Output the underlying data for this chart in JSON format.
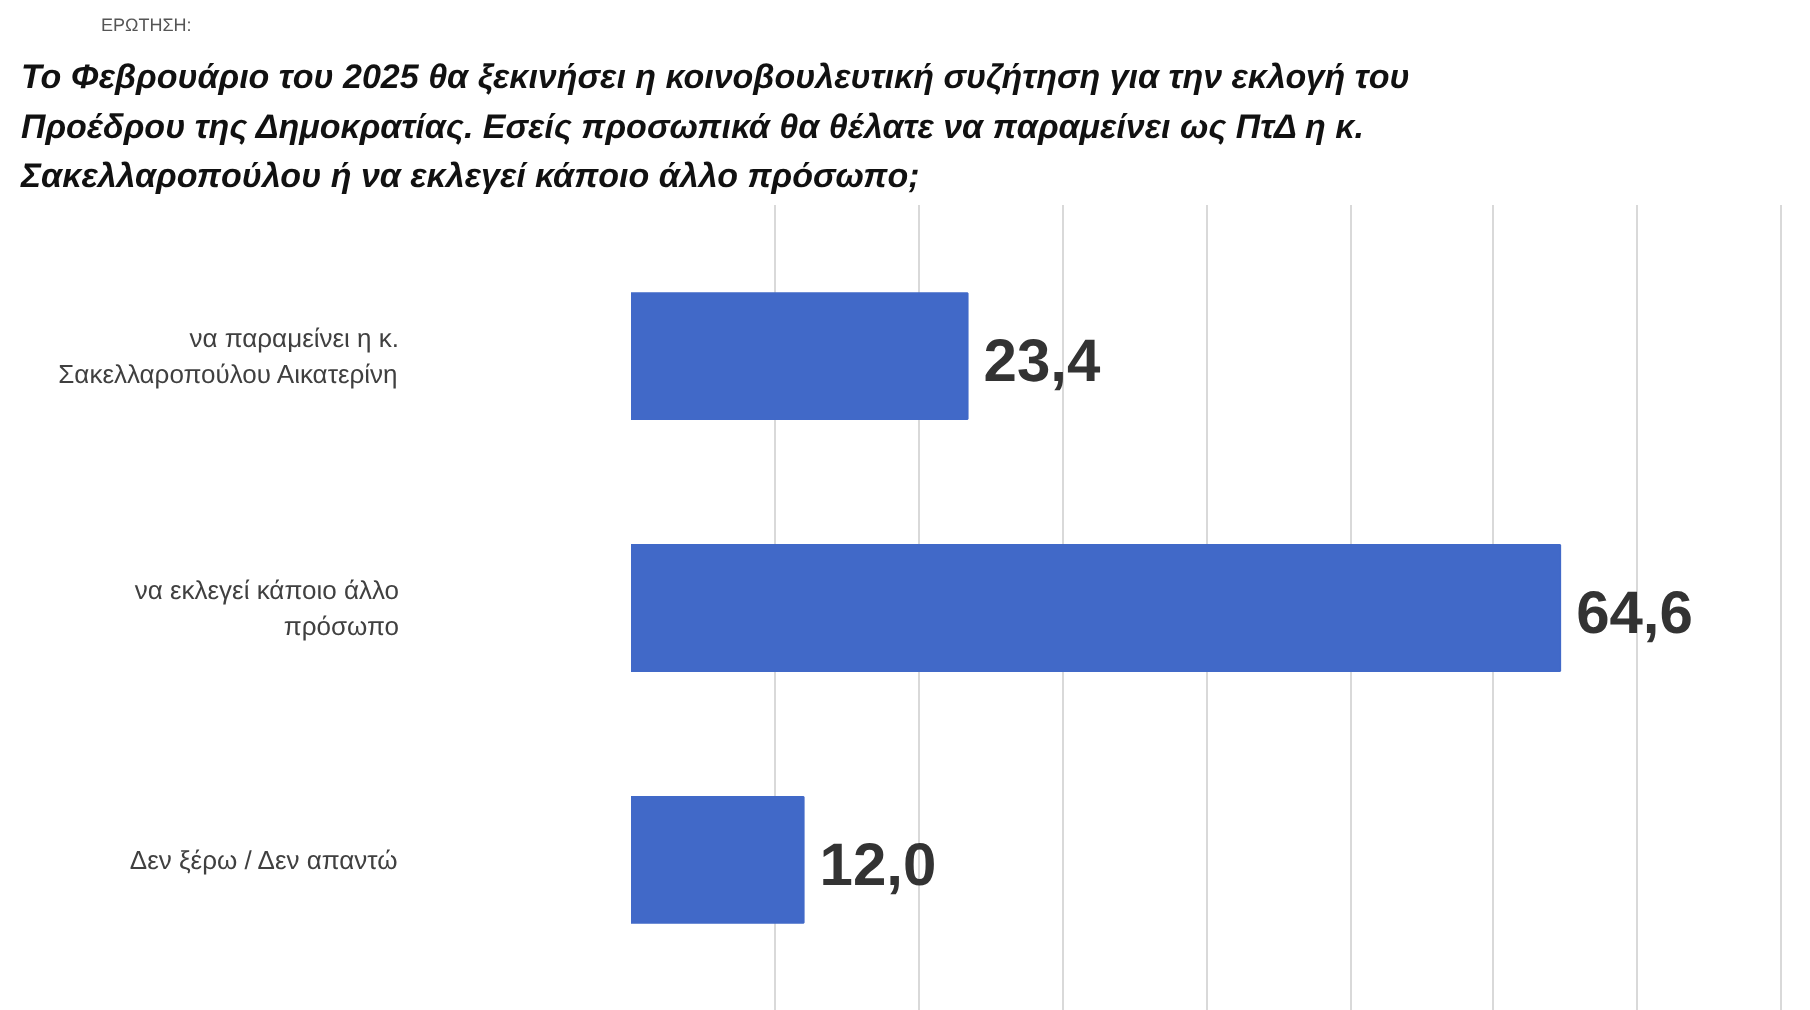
{
  "chart_data": {
    "type": "bar",
    "orientation": "horizontal",
    "title": "Το Φεβρουάριο του 2025 θα ξεκινήσει η κοινοβουλευτική συζήτηση για την εκλογή του Προέδρου της Δημοκρατίας. Εσείς προσωπικά θα θέλατε να παραμείνει ως ΠτΔ η κ. Σακελλαροπούλου ή να εκλεγεί κάποιο άλλο πρόσωπο;",
    "annotations": [
      "ΕΡΩΤΗΣΗ:"
    ],
    "categories": [
      "να παραμείνει η κ.\nΣακελλαροπούλου Αικατερίνη",
      "να εκλεγεί κάποιο άλλο\nπρόσωπο",
      "Δεν ξέρω / Δεν απαντώ"
    ],
    "values": [
      23.4,
      64.6,
      12.0
    ],
    "value_labels": [
      "23,4",
      "64,6",
      "12,0"
    ],
    "color": "#4169c8",
    "grid": "x",
    "tick_labels": "y"
  }
}
